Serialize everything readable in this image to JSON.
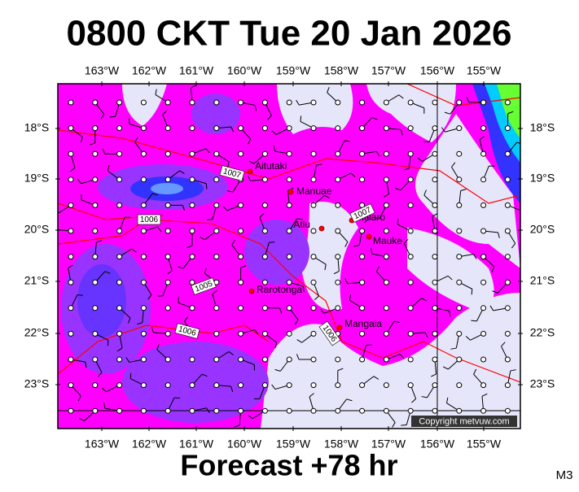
{
  "header": {
    "title": "0800 CKT Tue 20 Jan 2026"
  },
  "footer": {
    "forecast": "Forecast +78 hr",
    "model": "M3"
  },
  "map": {
    "longitude_labels": [
      "163°W",
      "162°W",
      "161°W",
      "160°W",
      "159°W",
      "158°W",
      "157°W",
      "156°W",
      "155°W"
    ],
    "latitude_labels": [
      "18°S",
      "19°S",
      "20°S",
      "21°S",
      "22°S",
      "23°S"
    ],
    "places": [
      {
        "label": "Aitutaki"
      },
      {
        "label": "Manuae"
      },
      {
        "label": "Atiu"
      },
      {
        "label": "Mitiaro"
      },
      {
        "label": "Mauke"
      },
      {
        "label": "Rarotonga"
      },
      {
        "label": "Mangaia"
      }
    ],
    "isobar_labels": [
      "1007",
      "1006",
      "1007",
      "1005",
      "1006",
      "1006"
    ],
    "copyright": "Copyright metvuw.com"
  }
}
